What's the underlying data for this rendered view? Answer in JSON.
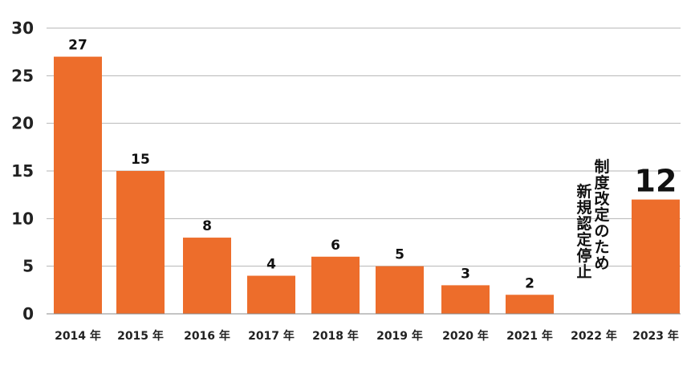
{
  "chart_data": {
    "type": "bar",
    "categories": [
      "2014 年",
      "2015 年",
      "2016 年",
      "2017 年",
      "2018 年",
      "2019 年",
      "2020 年",
      "2021 年",
      "2022 年",
      "2023 年"
    ],
    "values": [
      27,
      15,
      8,
      4,
      6,
      5,
      3,
      2,
      null,
      12
    ],
    "data_labels": [
      "27",
      "15",
      "8",
      "4",
      "6",
      "5",
      "3",
      "2",
      "",
      "12"
    ],
    "y_ticks": [
      "0",
      "5",
      "10",
      "15",
      "20",
      "25",
      "30"
    ],
    "ylim": [
      0,
      30
    ],
    "grid": true,
    "bar_color": "#ed6d2b",
    "annotation": {
      "category": "2022 年",
      "lines": [
        "制度改定のため",
        "新規認定停止"
      ]
    }
  }
}
